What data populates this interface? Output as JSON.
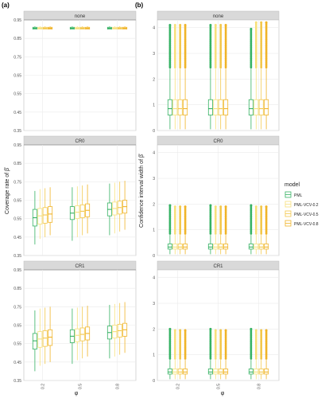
{
  "panel_labels": [
    "(a)",
    "(b)"
  ],
  "legend": {
    "title": "model",
    "items": [
      {
        "label": "PML",
        "color": "#35b263"
      },
      {
        "label": "PML-VCV-0.2",
        "color": "#f7e07c"
      },
      {
        "label": "PML-VCV-0.5",
        "color": "#f3c74a"
      },
      {
        "label": "PML-VCV-0.8",
        "color": "#f0b429"
      }
    ]
  },
  "colors": {
    "PML": "#35b263",
    "PML-VCV-0.2": "#f7e07c",
    "PML-VCV-0.5": "#f3c74a",
    "PML-VCV-0.8": "#f0b429",
    "panel_bg": "#ffffff",
    "strip_bg": "#d9d9d9",
    "grid": "#ebebeb",
    "reference_line": "#8c8c8c"
  },
  "chart_data": [
    {
      "type": "box",
      "panel_label": "(a)",
      "ylabel": "Coverage rate of β̂",
      "xlabel": "φ",
      "categories": [
        "0.2",
        "0.5",
        "0.8"
      ],
      "yticks": [
        "0.35",
        "0.45",
        "0.55",
        "0.65",
        "0.75",
        "0.85",
        "0.95"
      ],
      "ylim": [
        0.35,
        0.95
      ],
      "reference_line": 0.95,
      "facets": [
        {
          "title": "none",
          "boxes": [
            [
              {
                "min": 0.9,
                "q1": 0.9,
                "median": 0.905,
                "q3": 0.91,
                "max": 0.915
              },
              {
                "min": 0.9,
                "q1": 0.9,
                "median": 0.905,
                "q3": 0.91,
                "max": 0.915
              },
              {
                "min": 0.9,
                "q1": 0.9,
                "median": 0.905,
                "q3": 0.91,
                "max": 0.915
              },
              {
                "min": 0.9,
                "q1": 0.9,
                "median": 0.905,
                "q3": 0.91,
                "max": 0.915
              }
            ],
            [
              {
                "min": 0.9,
                "q1": 0.9,
                "median": 0.905,
                "q3": 0.91,
                "max": 0.915
              },
              {
                "min": 0.9,
                "q1": 0.9,
                "median": 0.905,
                "q3": 0.91,
                "max": 0.915
              },
              {
                "min": 0.9,
                "q1": 0.9,
                "median": 0.905,
                "q3": 0.91,
                "max": 0.915
              },
              {
                "min": 0.9,
                "q1": 0.9,
                "median": 0.905,
                "q3": 0.91,
                "max": 0.915
              }
            ],
            [
              {
                "min": 0.9,
                "q1": 0.9,
                "median": 0.905,
                "q3": 0.91,
                "max": 0.915
              },
              {
                "min": 0.9,
                "q1": 0.9,
                "median": 0.905,
                "q3": 0.91,
                "max": 0.915
              },
              {
                "min": 0.9,
                "q1": 0.9,
                "median": 0.905,
                "q3": 0.91,
                "max": 0.915
              },
              {
                "min": 0.9,
                "q1": 0.9,
                "median": 0.905,
                "q3": 0.91,
                "max": 0.915
              }
            ]
          ]
        },
        {
          "title": "CR0",
          "boxes": [
            [
              {
                "min": 0.41,
                "q1": 0.51,
                "median": 0.555,
                "q3": 0.6,
                "max": 0.7
              },
              {
                "min": 0.44,
                "q1": 0.52,
                "median": 0.565,
                "q3": 0.605,
                "max": 0.71
              },
              {
                "min": 0.45,
                "q1": 0.525,
                "median": 0.57,
                "q3": 0.61,
                "max": 0.715
              },
              {
                "min": 0.46,
                "q1": 0.53,
                "median": 0.575,
                "q3": 0.615,
                "max": 0.72
              }
            ],
            [
              {
                "min": 0.43,
                "q1": 0.545,
                "median": 0.58,
                "q3": 0.615,
                "max": 0.72
              },
              {
                "min": 0.45,
                "q1": 0.55,
                "median": 0.585,
                "q3": 0.62,
                "max": 0.725
              },
              {
                "min": 0.46,
                "q1": 0.555,
                "median": 0.59,
                "q3": 0.625,
                "max": 0.73
              },
              {
                "min": 0.47,
                "q1": 0.56,
                "median": 0.595,
                "q3": 0.63,
                "max": 0.735
              }
            ],
            [
              {
                "min": 0.46,
                "q1": 0.565,
                "median": 0.6,
                "q3": 0.635,
                "max": 0.74
              },
              {
                "min": 0.47,
                "q1": 0.57,
                "median": 0.605,
                "q3": 0.64,
                "max": 0.745
              },
              {
                "min": 0.48,
                "q1": 0.575,
                "median": 0.61,
                "q3": 0.645,
                "max": 0.75
              },
              {
                "min": 0.49,
                "q1": 0.58,
                "median": 0.615,
                "q3": 0.65,
                "max": 0.755
              }
            ]
          ]
        },
        {
          "title": "CR1",
          "boxes": [
            [
              {
                "min": 0.4,
                "q1": 0.52,
                "median": 0.565,
                "q3": 0.605,
                "max": 0.73
              },
              {
                "min": 0.43,
                "q1": 0.53,
                "median": 0.575,
                "q3": 0.615,
                "max": 0.74
              },
              {
                "min": 0.44,
                "q1": 0.535,
                "median": 0.58,
                "q3": 0.62,
                "max": 0.745
              },
              {
                "min": 0.45,
                "q1": 0.54,
                "median": 0.585,
                "q3": 0.625,
                "max": 0.75
              }
            ],
            [
              {
                "min": 0.44,
                "q1": 0.555,
                "median": 0.59,
                "q3": 0.625,
                "max": 0.74
              },
              {
                "min": 0.46,
                "q1": 0.56,
                "median": 0.595,
                "q3": 0.63,
                "max": 0.745
              },
              {
                "min": 0.47,
                "q1": 0.565,
                "median": 0.6,
                "q3": 0.635,
                "max": 0.75
              },
              {
                "min": 0.48,
                "q1": 0.57,
                "median": 0.605,
                "q3": 0.64,
                "max": 0.755
              }
            ],
            [
              {
                "min": 0.47,
                "q1": 0.575,
                "median": 0.61,
                "q3": 0.645,
                "max": 0.76
              },
              {
                "min": 0.48,
                "q1": 0.58,
                "median": 0.615,
                "q3": 0.65,
                "max": 0.765
              },
              {
                "min": 0.49,
                "q1": 0.585,
                "median": 0.62,
                "q3": 0.655,
                "max": 0.77
              },
              {
                "min": 0.5,
                "q1": 0.59,
                "median": 0.625,
                "q3": 0.66,
                "max": 0.775
              }
            ]
          ]
        }
      ]
    },
    {
      "type": "box",
      "panel_label": "(b)",
      "ylabel": "Confidence interval width of β̂",
      "xlabel": "φ",
      "categories": [
        "0.2",
        "0.5",
        "0.8"
      ],
      "yticks": [
        "0",
        "1",
        "2",
        "3",
        "4"
      ],
      "ylim": [
        0,
        4.3
      ],
      "facets": [
        {
          "title": "none",
          "boxes": [
            [
              {
                "min": 0.05,
                "q1": 0.6,
                "median": 0.85,
                "q3": 1.2,
                "max": 2.4,
                "outlier_max": 4.1
              },
              {
                "min": 0.05,
                "q1": 0.6,
                "median": 0.85,
                "q3": 1.2,
                "max": 2.4,
                "outlier_max": 4.1
              },
              {
                "min": 0.05,
                "q1": 0.6,
                "median": 0.85,
                "q3": 1.2,
                "max": 2.4,
                "outlier_max": 4.1
              },
              {
                "min": 0.05,
                "q1": 0.6,
                "median": 0.85,
                "q3": 1.2,
                "max": 2.4,
                "outlier_max": 4.1
              }
            ],
            [
              {
                "min": 0.05,
                "q1": 0.6,
                "median": 0.85,
                "q3": 1.2,
                "max": 2.4,
                "outlier_max": 4.1
              },
              {
                "min": 0.05,
                "q1": 0.6,
                "median": 0.85,
                "q3": 1.2,
                "max": 2.4,
                "outlier_max": 4.1
              },
              {
                "min": 0.05,
                "q1": 0.6,
                "median": 0.85,
                "q3": 1.2,
                "max": 2.4,
                "outlier_max": 4.1
              },
              {
                "min": 0.05,
                "q1": 0.6,
                "median": 0.85,
                "q3": 1.2,
                "max": 2.4,
                "outlier_max": 4.1
              }
            ],
            [
              {
                "min": 0.05,
                "q1": 0.6,
                "median": 0.85,
                "q3": 1.2,
                "max": 2.4,
                "outlier_max": 3.95
              },
              {
                "min": 0.05,
                "q1": 0.6,
                "median": 0.85,
                "q3": 1.2,
                "max": 2.4,
                "outlier_max": 4.2
              },
              {
                "min": 0.05,
                "q1": 0.6,
                "median": 0.85,
                "q3": 1.2,
                "max": 2.4,
                "outlier_max": 4.2
              },
              {
                "min": 0.05,
                "q1": 0.6,
                "median": 0.85,
                "q3": 1.2,
                "max": 2.4,
                "outlier_max": 4.2
              }
            ]
          ]
        },
        {
          "title": "CR0",
          "boxes": [
            [
              {
                "min": 0.05,
                "q1": 0.25,
                "median": 0.33,
                "q3": 0.45,
                "max": 0.8,
                "outlier_max": 1.95
              },
              {
                "min": 0.05,
                "q1": 0.25,
                "median": 0.33,
                "q3": 0.45,
                "max": 0.8,
                "outlier_max": 1.9
              },
              {
                "min": 0.05,
                "q1": 0.25,
                "median": 0.33,
                "q3": 0.45,
                "max": 0.8,
                "outlier_max": 1.9
              },
              {
                "min": 0.05,
                "q1": 0.25,
                "median": 0.33,
                "q3": 0.45,
                "max": 0.8,
                "outlier_max": 1.9
              }
            ],
            [
              {
                "min": 0.05,
                "q1": 0.25,
                "median": 0.33,
                "q3": 0.45,
                "max": 0.8,
                "outlier_max": 1.95
              },
              {
                "min": 0.05,
                "q1": 0.25,
                "median": 0.33,
                "q3": 0.45,
                "max": 0.8,
                "outlier_max": 1.9
              },
              {
                "min": 0.05,
                "q1": 0.25,
                "median": 0.33,
                "q3": 0.45,
                "max": 0.8,
                "outlier_max": 1.9
              },
              {
                "min": 0.05,
                "q1": 0.25,
                "median": 0.33,
                "q3": 0.45,
                "max": 0.8,
                "outlier_max": 1.9
              }
            ],
            [
              {
                "min": 0.05,
                "q1": 0.25,
                "median": 0.33,
                "q3": 0.45,
                "max": 0.8,
                "outlier_max": 1.95
              },
              {
                "min": 0.05,
                "q1": 0.25,
                "median": 0.33,
                "q3": 0.45,
                "max": 0.8,
                "outlier_max": 1.9
              },
              {
                "min": 0.05,
                "q1": 0.25,
                "median": 0.33,
                "q3": 0.45,
                "max": 0.8,
                "outlier_max": 1.9
              },
              {
                "min": 0.05,
                "q1": 0.25,
                "median": 0.33,
                "q3": 0.45,
                "max": 0.8,
                "outlier_max": 1.9
              }
            ]
          ]
        },
        {
          "title": "CR1",
          "boxes": [
            [
              {
                "min": 0.05,
                "q1": 0.25,
                "median": 0.33,
                "q3": 0.45,
                "max": 0.8,
                "outlier_max": 2.0
              },
              {
                "min": 0.05,
                "q1": 0.25,
                "median": 0.33,
                "q3": 0.45,
                "max": 0.8,
                "outlier_max": 1.95
              },
              {
                "min": 0.05,
                "q1": 0.25,
                "median": 0.33,
                "q3": 0.45,
                "max": 0.8,
                "outlier_max": 1.95
              },
              {
                "min": 0.05,
                "q1": 0.25,
                "median": 0.33,
                "q3": 0.45,
                "max": 0.8,
                "outlier_max": 1.95
              }
            ],
            [
              {
                "min": 0.05,
                "q1": 0.25,
                "median": 0.33,
                "q3": 0.45,
                "max": 0.8,
                "outlier_max": 2.0
              },
              {
                "min": 0.05,
                "q1": 0.25,
                "median": 0.33,
                "q3": 0.45,
                "max": 0.8,
                "outlier_max": 1.95
              },
              {
                "min": 0.05,
                "q1": 0.25,
                "median": 0.33,
                "q3": 0.45,
                "max": 0.8,
                "outlier_max": 1.95
              },
              {
                "min": 0.05,
                "q1": 0.25,
                "median": 0.33,
                "q3": 0.45,
                "max": 0.8,
                "outlier_max": 1.95
              }
            ],
            [
              {
                "min": 0.05,
                "q1": 0.25,
                "median": 0.33,
                "q3": 0.45,
                "max": 0.8,
                "outlier_max": 2.0
              },
              {
                "min": 0.05,
                "q1": 0.25,
                "median": 0.33,
                "q3": 0.45,
                "max": 0.8,
                "outlier_max": 1.95
              },
              {
                "min": 0.05,
                "q1": 0.25,
                "median": 0.33,
                "q3": 0.45,
                "max": 0.8,
                "outlier_max": 1.95
              },
              {
                "min": 0.05,
                "q1": 0.25,
                "median": 0.33,
                "q3": 0.45,
                "max": 0.8,
                "outlier_max": 1.95
              }
            ]
          ]
        }
      ]
    }
  ]
}
